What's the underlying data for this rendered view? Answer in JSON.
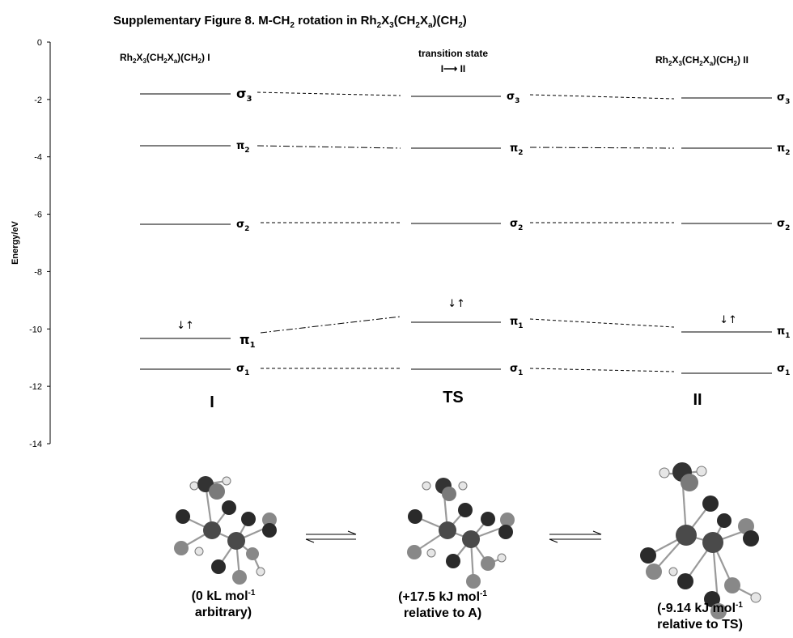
{
  "title": {
    "text": "Supplementary Figure 8. M-CH",
    "sub1": "2",
    "mid": " rotation in Rh",
    "sub2": "2",
    "x": "X",
    "sub3": "3",
    "rest": "(CH",
    "sub4": "2",
    "x2": "X",
    "sub5": "a",
    "close": ")(CH",
    "sub6": "2",
    "end": ")"
  },
  "axis": {
    "label": "Energy/eV",
    "ticks": [
      "0",
      "-2",
      "-4",
      "-6",
      "-8",
      "-10",
      "-12",
      "-14"
    ]
  },
  "columns": {
    "left_header": {
      "a": "Rh",
      "b": "2",
      "c": "X",
      "d": "3",
      "e": "(CH",
      "f": "2",
      "g": "X",
      "h": "a",
      "i": ")(CH",
      "j": "2",
      "k": ") I"
    },
    "mid_header_1": "transition state",
    "mid_header_2": "I⟶ II",
    "right_header": {
      "a": "Rh",
      "b": "2",
      "c": "X",
      "d": "3",
      "e": "(CH",
      "f": "2",
      "g": "X",
      "h": "a",
      "i": ")(CH",
      "j": "2",
      "k": ") II"
    }
  },
  "orbital_labels": {
    "sigma3": "σ",
    "sigma3_sub": "3",
    "pi2": "π",
    "pi2_sub": "2",
    "sigma2": "σ",
    "sigma2_sub": "2",
    "pi1": "π",
    "pi1_sub": "1",
    "sigma1": "σ",
    "sigma1_sub": "1"
  },
  "spin_label": "↓↑",
  "structures": {
    "left": "I",
    "mid": "TS",
    "right": "II"
  },
  "energies": {
    "left_1": "(0 kL mol",
    "left_sup": "-1",
    "left_2": "arbitrary)",
    "mid_1": "(+17.5 kJ mol",
    "mid_sup": "-1",
    "mid_2": "relative to A)",
    "right_1": "(-9.14 kJ mol",
    "right_sup": "-1",
    "right_2": "relative to TS)"
  },
  "chart_data": {
    "type": "energy-level diagram",
    "ylabel": "Energy/eV",
    "ylim": [
      -14,
      0
    ],
    "states": [
      "I",
      "TS",
      "II"
    ],
    "levels": [
      {
        "orbital": "σ1",
        "values": [
          -11.35,
          -11.35,
          -11.5
        ]
      },
      {
        "orbital": "π1",
        "values": [
          -10.35,
          -9.75,
          -10.1
        ],
        "occupied": true
      },
      {
        "orbital": "σ2",
        "values": [
          -6.3,
          -6.3,
          -6.3
        ]
      },
      {
        "orbital": "π2",
        "values": [
          -3.6,
          -3.65,
          -3.65
        ]
      },
      {
        "orbital": "σ3",
        "values": [
          -1.8,
          -1.85,
          -2.0
        ]
      }
    ]
  }
}
